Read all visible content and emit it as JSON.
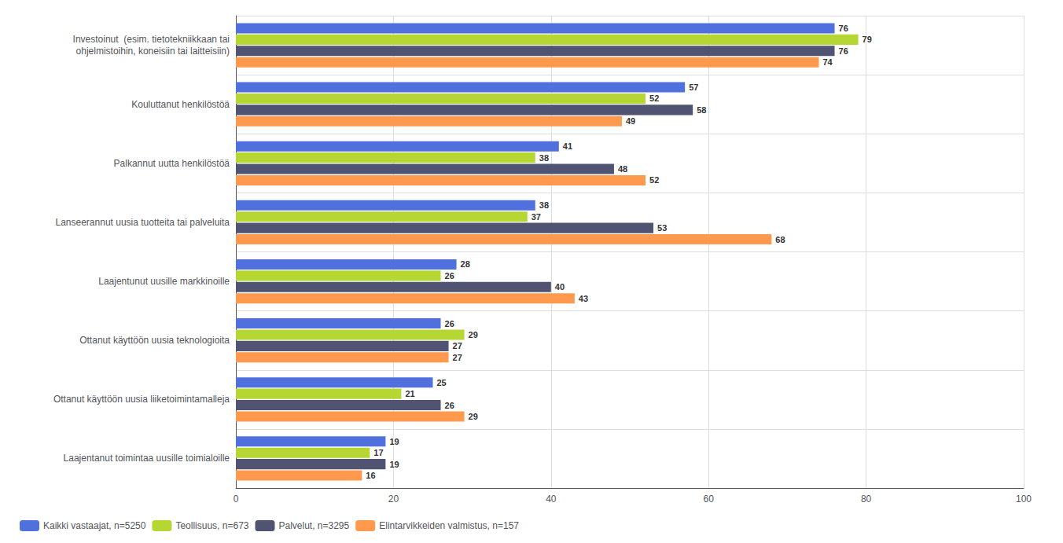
{
  "chart_data": {
    "type": "bar",
    "orientation": "horizontal",
    "categories": [
      "Investoinut  (esim. tietotekniikkaan tai\nohjelmistoihin, koneisiin tai laitteisiin)",
      "Kouluttanut henkilöstöä",
      "Palkannut uutta henkilöstöä",
      "Lanseerannut uusia tuotteita tai palveluita",
      "Laajentunut uusille markkinoille",
      "Ottanut käyttöön uusia teknologioita",
      "Ottanut käyttöön uusia liiketoimintamalleja",
      "Laajentanut toimintaa uusille toimialoille"
    ],
    "series": [
      {
        "name": "Kaikki vastaajat, n=5250",
        "values": [
          76,
          57,
          41,
          38,
          28,
          26,
          25,
          19
        ]
      },
      {
        "name": "Teollisuus, n=673",
        "values": [
          79,
          52,
          38,
          37,
          26,
          29,
          21,
          17
        ]
      },
      {
        "name": "Palvelut, n=3295",
        "values": [
          76,
          58,
          48,
          53,
          40,
          27,
          26,
          19
        ]
      },
      {
        "name": "Elintarvikkeiden valmistus, n=157",
        "values": [
          74,
          49,
          52,
          68,
          43,
          27,
          29,
          16
        ]
      }
    ],
    "xlim": [
      0,
      100
    ],
    "xticks": [
      0,
      20,
      40,
      60,
      80,
      100
    ],
    "grid": true,
    "data_labels": true,
    "legend": "lower left"
  }
}
